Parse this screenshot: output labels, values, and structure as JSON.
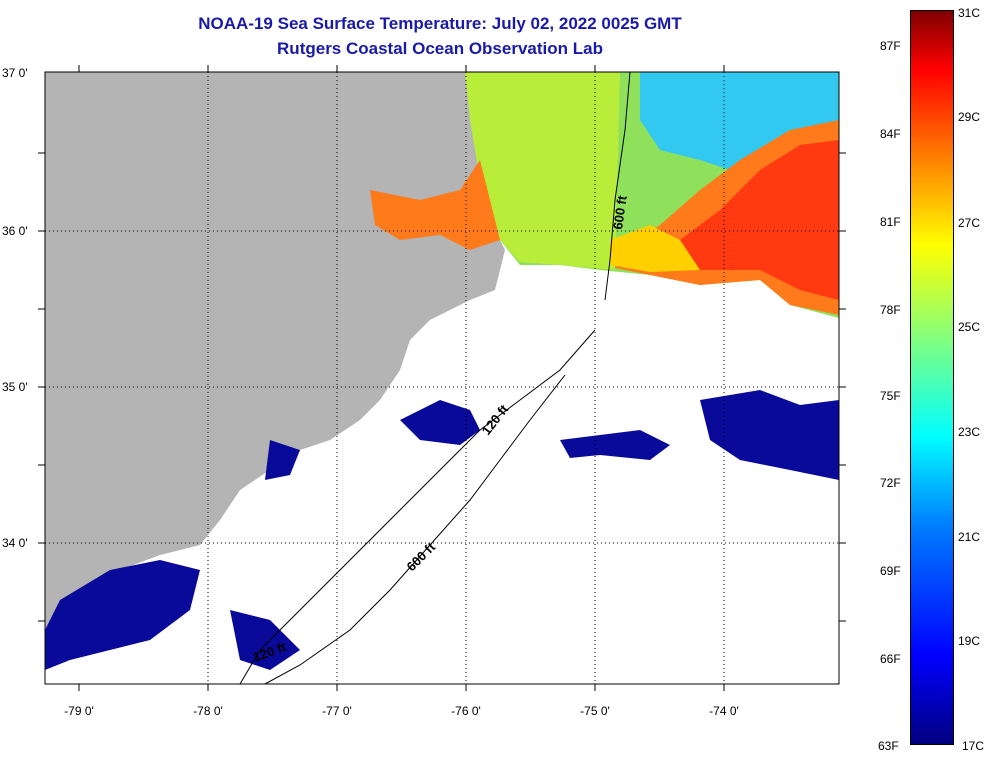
{
  "header": {
    "title": "NOAA-19 Sea Surface Temperature:  July 02, 2022 0025 GMT",
    "subtitle": "Rutgers Coastal Ocean Observation Lab"
  },
  "map": {
    "lat_labels": [
      "37 0'",
      "36 0'",
      "35 0'",
      "34 0'"
    ],
    "lon_labels": [
      "-79 0'",
      "-78 0'",
      "-77 0'",
      "-76 0'",
      "-75 0'",
      "-74 0'"
    ],
    "lat_range": [
      33.1,
      37.0
    ],
    "lon_range": [
      -79.3,
      -73.2
    ],
    "contour_labels": [
      "600 ft",
      "120 ft",
      "600 ft",
      "120 ft"
    ],
    "colors": {
      "land": "#b4b4b4",
      "cloud": "#ffffff",
      "grid": "#000000"
    }
  },
  "colorbar": {
    "fahrenheit": [
      "87F",
      "84F",
      "81F",
      "78F",
      "75F",
      "72F",
      "69F",
      "66F",
      "63F"
    ],
    "celsius": [
      "31C",
      "29C",
      "27C",
      "25C",
      "23C",
      "21C",
      "19C",
      "17C"
    ],
    "range_c": [
      17,
      31
    ],
    "colors": [
      "#00007f",
      "#0000ff",
      "#007fff",
      "#00ffff",
      "#7fff7f",
      "#ffff00",
      "#ff7f00",
      "#ff0000",
      "#7f0000"
    ]
  }
}
